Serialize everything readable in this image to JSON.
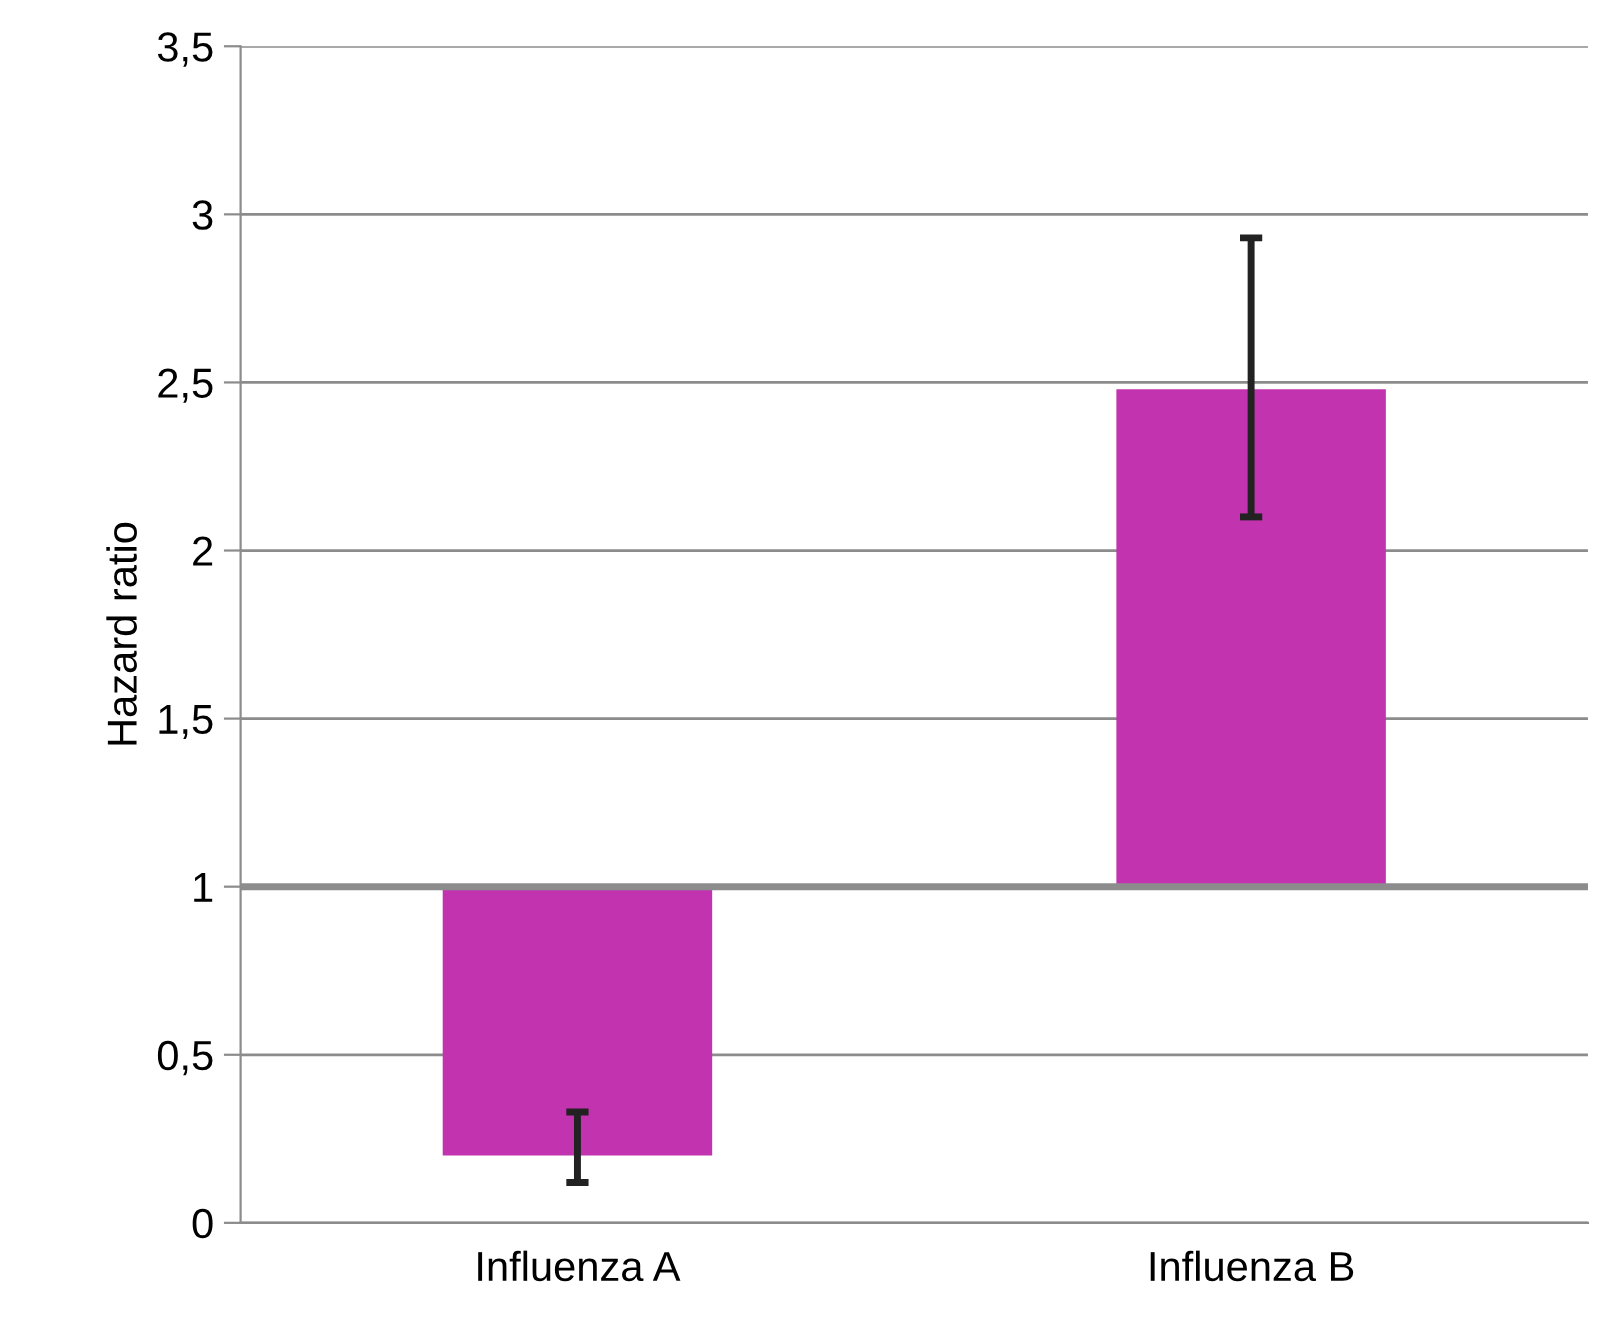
{
  "chart_data": {
    "type": "bar",
    "ylabel": "Hazard ratio",
    "categories": [
      "Influenza A",
      "Influenza B"
    ],
    "base": [
      1,
      1
    ],
    "values": [
      -0.8,
      1.48
    ],
    "errors": [
      [
        0.12,
        0.33
      ],
      [
        2.1,
        2.93
      ]
    ],
    "color": "#c233b0",
    "ylim": [
      0,
      3.5
    ],
    "yticks": [
      0,
      {
        "value": 0.5,
        "label": "0,5"
      },
      1,
      {
        "value": 1.5,
        "label": "1,5"
      },
      2,
      {
        "value": 2.5,
        "label": "2,5"
      },
      3,
      {
        "value": 3.5,
        "label": "3,5"
      }
    ],
    "grid": "y",
    "ref_lines": [
      {
        "axis": "y",
        "value": 1,
        "color": "#8c8c8c"
      }
    ]
  }
}
